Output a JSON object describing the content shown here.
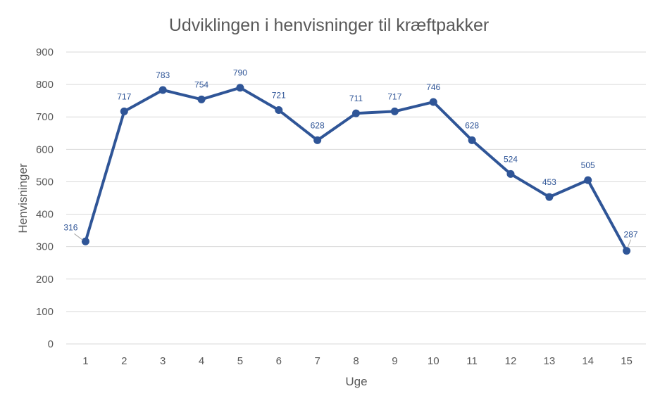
{
  "chart_data": {
    "type": "line",
    "title": "Udviklingen i henvisninger til kræftpakker",
    "xlabel": "Uge",
    "ylabel": "Henvisninger",
    "categories": [
      "1",
      "2",
      "3",
      "4",
      "5",
      "6",
      "7",
      "8",
      "9",
      "10",
      "11",
      "12",
      "13",
      "14",
      "15"
    ],
    "series": [
      {
        "values": [
          316,
          717,
          783,
          754,
          790,
          721,
          628,
          711,
          717,
          746,
          628,
          524,
          453,
          505,
          287
        ],
        "color": "#2f5597",
        "markers": true,
        "data_labels": true
      }
    ],
    "ylim": [
      0,
      900
    ],
    "yticks": [
      0,
      100,
      200,
      300,
      400,
      500,
      600,
      700,
      800,
      900
    ],
    "grid": true,
    "legend": "none"
  }
}
